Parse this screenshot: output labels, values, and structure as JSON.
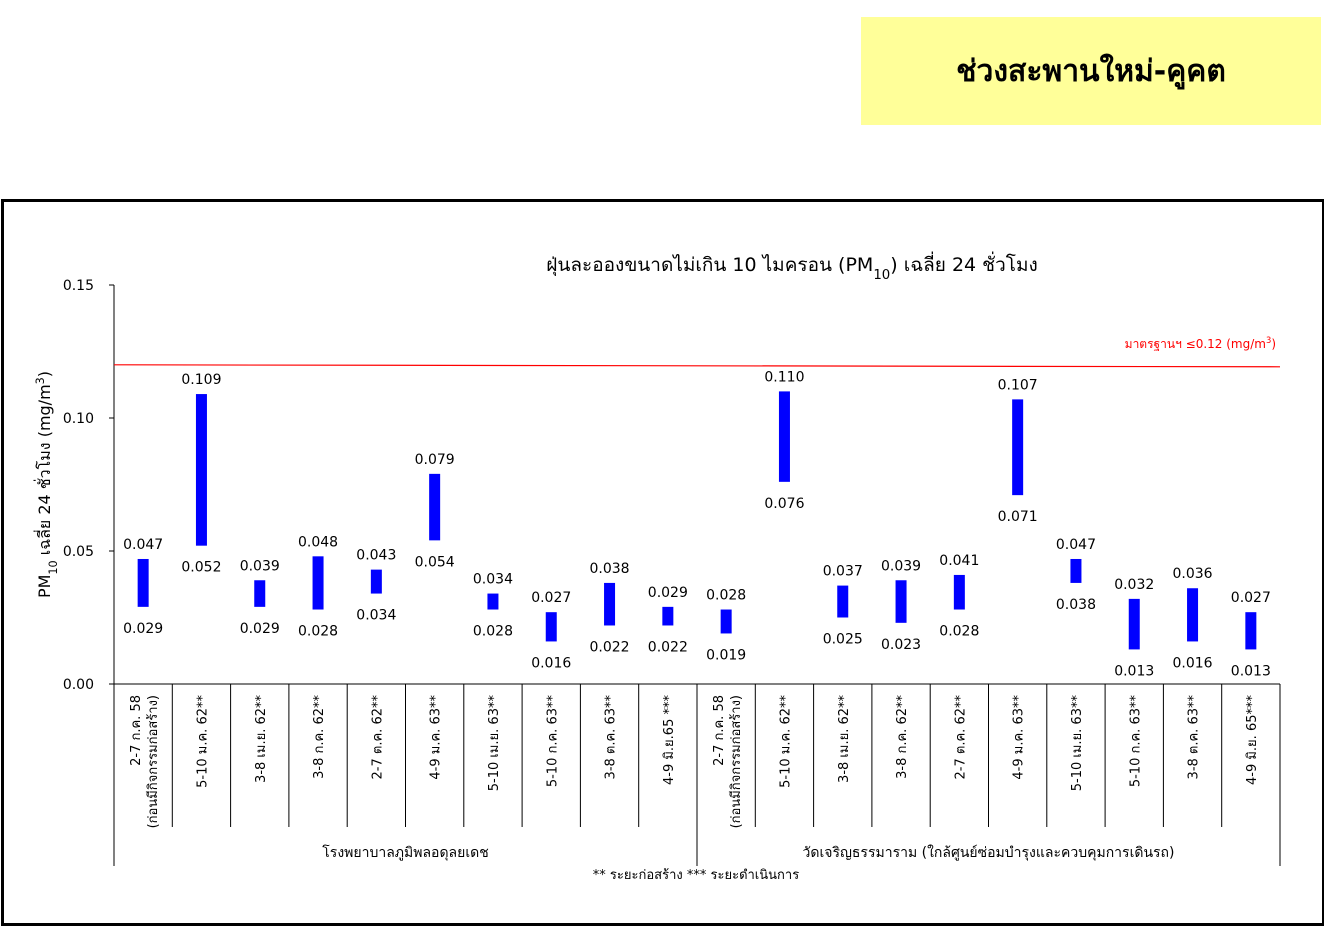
{
  "banner": {
    "title": "ช่วงสะพานใหม่-คูคต"
  },
  "chart_data": {
    "type": "bar",
    "subtype": "floating-range",
    "title": {
      "main": "ฝุ่นละอองขนาดไม่เกิน 10 ไมครอน (PM",
      "sub": "10",
      "tail": ") เฉลี่ย 24 ชั่วโมง"
    },
    "ylabel": {
      "pre": "PM",
      "sub": "10",
      "mid": " เฉลี่ย 24 ชั่วโมง (mg/m",
      "sup": "3",
      "tail": ")"
    },
    "ylim": [
      0,
      0.15
    ],
    "yticks": [
      "0.00",
      "0.05",
      "0.10",
      "0.15"
    ],
    "standard": {
      "value": 0.12,
      "label": "มาตรฐานฯ ≤0.12 (mg/m",
      "sup": "3",
      "tail": ")",
      "color": "#ff0000"
    },
    "bar_color": "#0000ff",
    "categories": [
      "2-7 ก.ค. 58|(ก่อนมีกิจกรรมก่อสร้าง)",
      "5-10 ม.ค. 62**",
      "3-8 เม.ย. 62**",
      "3-8 ก.ค. 62**",
      "2-7 ต.ค. 62**",
      "4-9 ม.ค. 63**",
      "5-10 เม.ย. 63**",
      "5-10 ก.ค. 63**",
      "3-8 ต.ค. 63**",
      "4-9 มิ.ย.65 ***",
      "2-7 ก.ค. 58|(ก่อนมีกิจกรรมก่อสร้าง)",
      "5-10 ม.ค. 62**",
      "3-8 เม.ย. 62**",
      "3-8 ก.ค. 62**",
      "2-7 ต.ค. 62**",
      "4-9 ม.ค. 63**",
      "5-10 เม.ย. 63**",
      "5-10 ก.ค. 63**",
      "3-8 ต.ค. 63**",
      "4-9 มิ.ย. 65***"
    ],
    "series": [
      {
        "name": "max",
        "values": [
          0.047,
          0.109,
          0.039,
          0.048,
          0.043,
          0.079,
          0.034,
          0.027,
          0.038,
          0.029,
          0.028,
          0.11,
          0.037,
          0.039,
          0.041,
          0.107,
          0.047,
          0.032,
          0.036,
          0.027
        ],
        "labels": [
          "0.047",
          "0.109",
          "0.039",
          "0.048",
          "0.043",
          "0.079",
          "0.034",
          "0.027",
          "0.038",
          "0.029",
          "0.028",
          "0.110",
          "0.037",
          "0.039",
          "0.041",
          "0.107",
          "0.047",
          "0.032",
          "0.036",
          "0.027"
        ]
      },
      {
        "name": "min",
        "values": [
          0.029,
          0.052,
          0.029,
          0.028,
          0.034,
          0.054,
          0.028,
          0.016,
          0.022,
          0.022,
          0.019,
          0.076,
          0.025,
          0.023,
          0.028,
          0.071,
          0.038,
          0.013,
          0.016,
          0.013
        ],
        "labels": [
          "0.029",
          "0.052",
          "0.029",
          "0.028",
          "0.034",
          "0.054",
          "0.028",
          "0.016",
          "0.022",
          "0.022",
          "0.019",
          "0.076",
          "0.025",
          "0.023",
          "0.028",
          "0.071",
          "0.038",
          "0.013",
          "0.016",
          "0.013"
        ]
      }
    ],
    "groups": [
      {
        "name": "โรงพยาบาลภูมิพลอดุลยเดช",
        "count": 10
      },
      {
        "name": "วัดเจริญธรรมาราม (ใกล้ศูนย์ซ่อมบำรุงและควบคุมการเดินรถ)",
        "count": 10
      }
    ],
    "footnote": "** ระยะก่อสร้าง    *** ระยะดำเนินการ"
  }
}
